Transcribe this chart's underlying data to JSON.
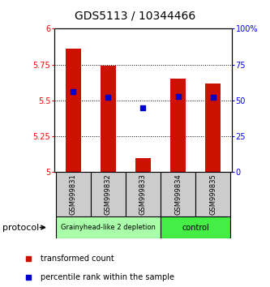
{
  "title": "GDS5113 / 10344466",
  "samples": [
    "GSM999831",
    "GSM999832",
    "GSM999833",
    "GSM999834",
    "GSM999835"
  ],
  "bar_values": [
    5.86,
    5.74,
    5.1,
    5.65,
    5.62
  ],
  "bar_bottom": 5.0,
  "blue_marker_values": [
    5.56,
    5.52,
    5.45,
    5.53,
    5.52
  ],
  "ylim": [
    5.0,
    6.0
  ],
  "y_ticks": [
    5.0,
    5.25,
    5.5,
    5.75,
    6.0
  ],
  "y_tick_labels": [
    "5",
    "5.25",
    "5.5",
    "5.75",
    "6"
  ],
  "right_y_ticks": [
    0,
    25,
    50,
    75,
    100
  ],
  "right_y_labels": [
    "0",
    "25",
    "50",
    "75",
    "100%"
  ],
  "bar_color": "#cc1100",
  "marker_color": "#0000cc",
  "group0_label": "Grainyhead-like 2 depletion",
  "group0_color": "#aaffaa",
  "group1_label": "control",
  "group1_color": "#44ee44",
  "protocol_label": "protocol",
  "legend_red": "transformed count",
  "legend_blue": "percentile rank within the sample"
}
